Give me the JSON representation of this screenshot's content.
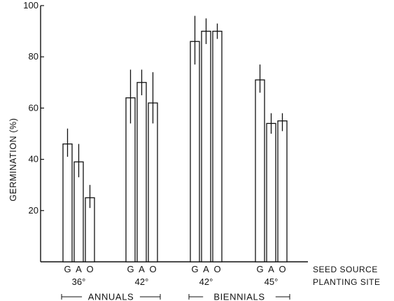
{
  "chart_data": {
    "type": "bar",
    "ylabel": "GERMINATION (%)",
    "ylim": [
      0,
      100
    ],
    "yticks": [
      20,
      40,
      60,
      80,
      100
    ],
    "grid": false,
    "row_labels": [
      "SEED SOURCE",
      "PLANTING SITE"
    ],
    "groups": [
      {
        "site": "36°",
        "bars": [
          {
            "source": "G",
            "value": 46,
            "error_low": 41,
            "error_high": 52
          },
          {
            "source": "A",
            "value": 39,
            "error_low": 33,
            "error_high": 46
          },
          {
            "source": "O",
            "value": 25,
            "error_low": 21,
            "error_high": 30
          }
        ]
      },
      {
        "site": "42°",
        "bars": [
          {
            "source": "G",
            "value": 64,
            "error_low": 54,
            "error_high": 75
          },
          {
            "source": "A",
            "value": 70,
            "error_low": 65,
            "error_high": 75
          },
          {
            "source": "O",
            "value": 62,
            "error_low": 54,
            "error_high": 74
          }
        ]
      },
      {
        "site": "42°",
        "bars": [
          {
            "source": "G",
            "value": 86,
            "error_low": 77,
            "error_high": 96
          },
          {
            "source": "A",
            "value": 90,
            "error_low": 85,
            "error_high": 95
          },
          {
            "source": "O",
            "value": 90,
            "error_low": 87,
            "error_high": 93
          }
        ]
      },
      {
        "site": "45°",
        "bars": [
          {
            "source": "G",
            "value": 71,
            "error_low": 66,
            "error_high": 77
          },
          {
            "source": "A",
            "value": 54,
            "error_low": 50,
            "error_high": 58
          },
          {
            "source": "O",
            "value": 55,
            "error_low": 51,
            "error_high": 58
          }
        ]
      }
    ],
    "categories": [
      {
        "label": "ANNUALS",
        "groups": [
          0,
          1
        ]
      },
      {
        "label": "BIENNIALS",
        "groups": [
          2,
          3
        ]
      }
    ]
  }
}
